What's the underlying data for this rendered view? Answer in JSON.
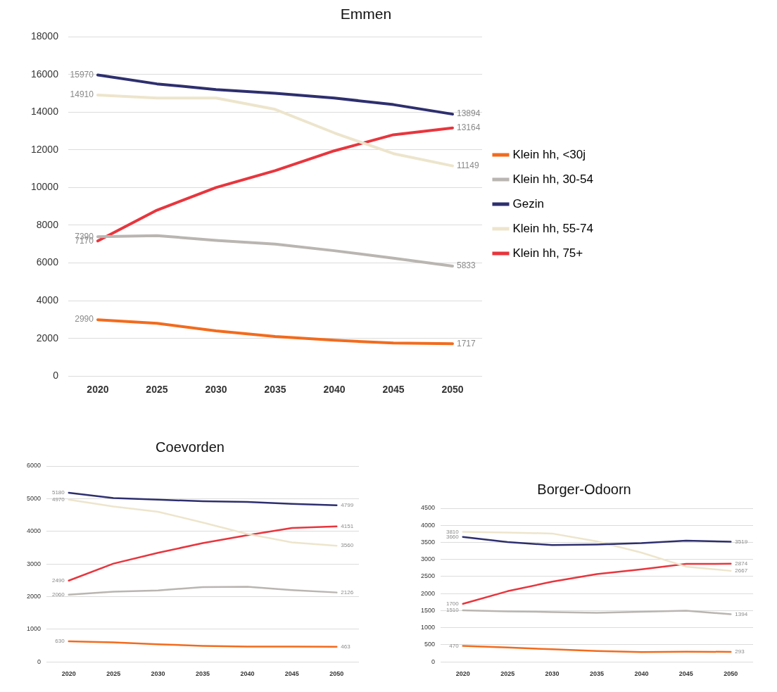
{
  "chart_data": [
    {
      "type": "line",
      "title": "Emmen",
      "categories": [
        "2020",
        "2025",
        "2030",
        "2035",
        "2040",
        "2045",
        "2050"
      ],
      "ylim": [
        0,
        18000
      ],
      "yticks": [
        0,
        2000,
        4000,
        6000,
        8000,
        10000,
        12000,
        14000,
        16000,
        18000
      ],
      "grid": "y",
      "legend": "right",
      "marker": "none",
      "series": [
        {
          "name": "Klein hh, <30j",
          "color": "#f26b1d",
          "values": [
            2990,
            2800,
            2400,
            2100,
            1900,
            1750,
            1717
          ],
          "value_labels": [
            "2990",
            null,
            null,
            null,
            null,
            null,
            "1717"
          ]
        },
        {
          "name": "Klein hh, 30-54",
          "color": "#b9b5b1",
          "values": [
            7390,
            7450,
            7200,
            7000,
            6650,
            6250,
            5833
          ],
          "value_labels": [
            "7390",
            null,
            null,
            null,
            null,
            null,
            "5833"
          ]
        },
        {
          "name": "Gezin",
          "color": "#2e2f6e",
          "values": [
            15970,
            15500,
            15200,
            15000,
            14750,
            14400,
            13894
          ],
          "value_labels": [
            "15970",
            null,
            null,
            null,
            null,
            null,
            "13894"
          ]
        },
        {
          "name": "Klein hh, 55-74",
          "color": "#ede5cc",
          "values": [
            14910,
            14750,
            14750,
            14150,
            12900,
            11800,
            11149
          ],
          "value_labels": [
            "14910",
            null,
            null,
            null,
            null,
            null,
            "11149"
          ]
        },
        {
          "name": "Klein hh, 75+",
          "color": "#e8353d",
          "values": [
            7170,
            8800,
            10000,
            10900,
            11950,
            12800,
            13164
          ],
          "value_labels": [
            "7170",
            null,
            null,
            null,
            null,
            null,
            "13164"
          ]
        }
      ]
    },
    {
      "type": "line",
      "title": "Coevorden",
      "categories": [
        "2020",
        "2025",
        "2030",
        "2035",
        "2040",
        "2045",
        "2050"
      ],
      "ylim": [
        0,
        6000
      ],
      "yticks": [
        0,
        1000,
        2000,
        3000,
        4000,
        5000,
        6000
      ],
      "grid": "y",
      "marker": "none",
      "series": [
        {
          "color": "#f26b1d",
          "values": [
            630,
            600,
            540,
            490,
            470,
            470,
            463
          ],
          "value_labels": [
            "630",
            null,
            null,
            null,
            null,
            null,
            "463"
          ]
        },
        {
          "color": "#b9b5b1",
          "values": [
            2060,
            2150,
            2190,
            2290,
            2300,
            2200,
            2126
          ],
          "value_labels": [
            "2060",
            null,
            null,
            null,
            null,
            null,
            "2126"
          ]
        },
        {
          "color": "#2e2f6e",
          "values": [
            5180,
            5020,
            4970,
            4920,
            4900,
            4840,
            4799
          ],
          "value_labels": [
            "5180",
            null,
            null,
            null,
            null,
            null,
            "4799"
          ]
        },
        {
          "color": "#ede5cc",
          "values": [
            4970,
            4760,
            4600,
            4270,
            3920,
            3660,
            3560
          ],
          "value_labels": [
            "4970",
            null,
            null,
            null,
            null,
            null,
            "3560"
          ]
        },
        {
          "color": "#e8353d",
          "values": [
            2490,
            3010,
            3340,
            3640,
            3880,
            4100,
            4151
          ],
          "value_labels": [
            "2490",
            null,
            null,
            null,
            null,
            null,
            "4151"
          ]
        }
      ]
    },
    {
      "type": "line",
      "title": "Borger-Odoorn",
      "categories": [
        "2020",
        "2025",
        "2030",
        "2035",
        "2040",
        "2045",
        "2050"
      ],
      "ylim": [
        0,
        4500
      ],
      "yticks": [
        0,
        500,
        1000,
        1500,
        2000,
        2500,
        3000,
        3500,
        4000,
        4500
      ],
      "grid": "y",
      "marker": "none",
      "series": [
        {
          "color": "#f26b1d",
          "values": [
            470,
            420,
            370,
            320,
            290,
            300,
            293
          ],
          "value_labels": [
            "470",
            null,
            null,
            null,
            null,
            null,
            "293"
          ]
        },
        {
          "color": "#b9b5b1",
          "values": [
            1510,
            1480,
            1460,
            1440,
            1470,
            1500,
            1394
          ],
          "value_labels": [
            "1510",
            null,
            null,
            null,
            null,
            null,
            "1394"
          ]
        },
        {
          "color": "#2e2f6e",
          "values": [
            3660,
            3510,
            3420,
            3440,
            3480,
            3550,
            3519
          ],
          "value_labels": [
            "3660",
            null,
            null,
            null,
            null,
            null,
            "3519"
          ]
        },
        {
          "color": "#ede5cc",
          "values": [
            3810,
            3790,
            3760,
            3530,
            3200,
            2790,
            2667
          ],
          "value_labels": [
            "3810",
            null,
            null,
            null,
            null,
            null,
            "2667"
          ]
        },
        {
          "color": "#e8353d",
          "values": [
            1700,
            2070,
            2350,
            2570,
            2710,
            2870,
            2874
          ],
          "value_labels": [
            "1700",
            null,
            null,
            null,
            null,
            null,
            "2874"
          ]
        }
      ]
    }
  ]
}
